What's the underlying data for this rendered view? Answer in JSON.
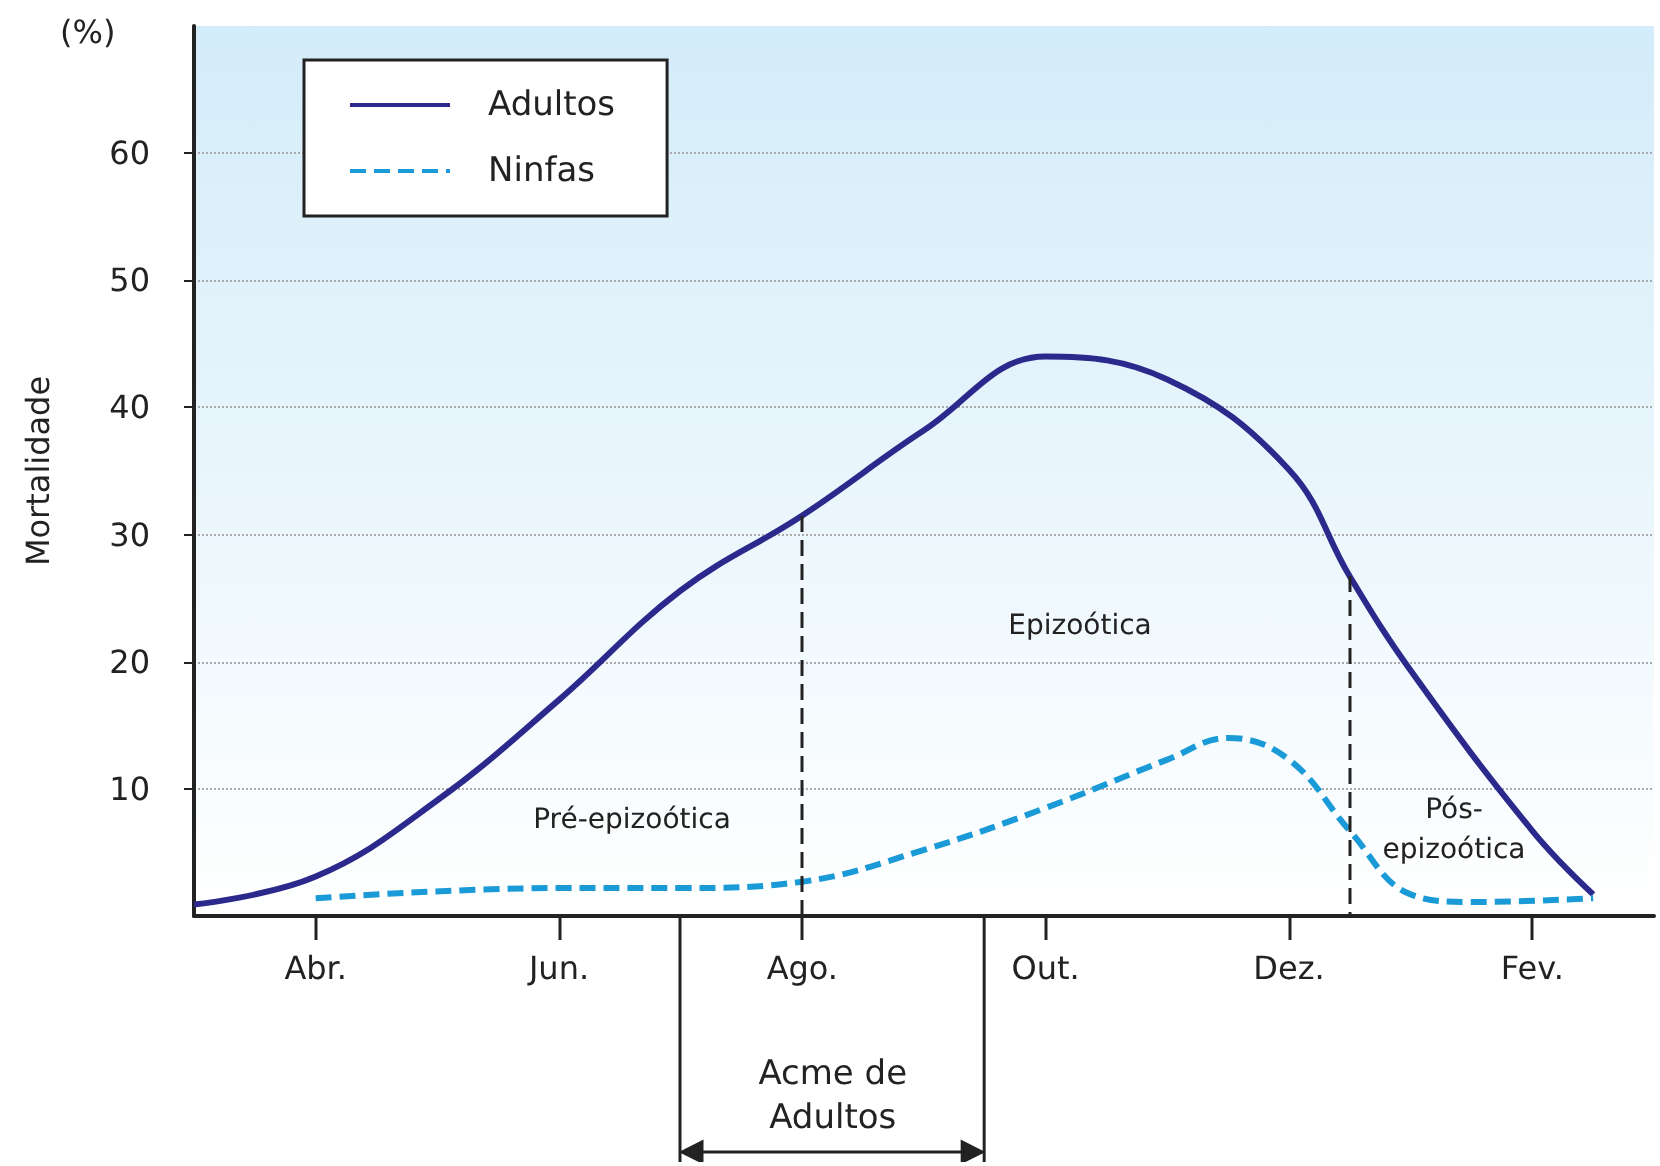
{
  "chart_data": {
    "type": "line",
    "ylabel": "Mortalidade",
    "categories": [
      null,
      null,
      "Abr.",
      null,
      null,
      null,
      "Jun.",
      null,
      null,
      null,
      "Ago.",
      null,
      null,
      null,
      "Out.",
      null,
      null,
      null,
      "Dez.",
      null,
      null,
      null,
      "Fev.",
      null,
      null
    ],
    "ylim": [
      0,
      70
    ],
    "yticks": [
      10,
      20,
      30,
      40,
      50,
      60
    ],
    "series": [
      {
        "name": "Adultos",
        "color": "#2b2a8c",
        "line_style": "solid",
        "values": [
          0.9,
          null,
          3.1,
          null,
          9.1,
          null,
          17,
          null,
          25.6,
          null,
          31.5,
          null,
          38.2,
          null,
          44,
          null,
          42.2,
          null,
          35.1,
          26.7,
          19.3,
          null,
          6.7,
          1.7,
          null
        ]
      },
      {
        "name": "Ninfas",
        "color": "#1a9ad6",
        "line_style": "dashed",
        "values": [
          null,
          null,
          1.4,
          null,
          null,
          null,
          2.2,
          null,
          2.2,
          null,
          2.7,
          null,
          5.2,
          null,
          8.5,
          null,
          12.3,
          14,
          12.3,
          6.7,
          1.7,
          1.1,
          null,
          1.4,
          null
        ]
      }
    ],
    "ref_lines": [
      {
        "axis": "x",
        "value": "Ago.",
        "color": "#222222",
        "line_style": "dashed"
      }
    ],
    "annotations": [
      "(%)",
      "Pré-epizoótica",
      "Epizoótica",
      "Pós-\nepizoótica",
      "Acme de\nAdultos"
    ],
    "grid": "y",
    "legend": "top left",
    "marker": "none"
  }
}
